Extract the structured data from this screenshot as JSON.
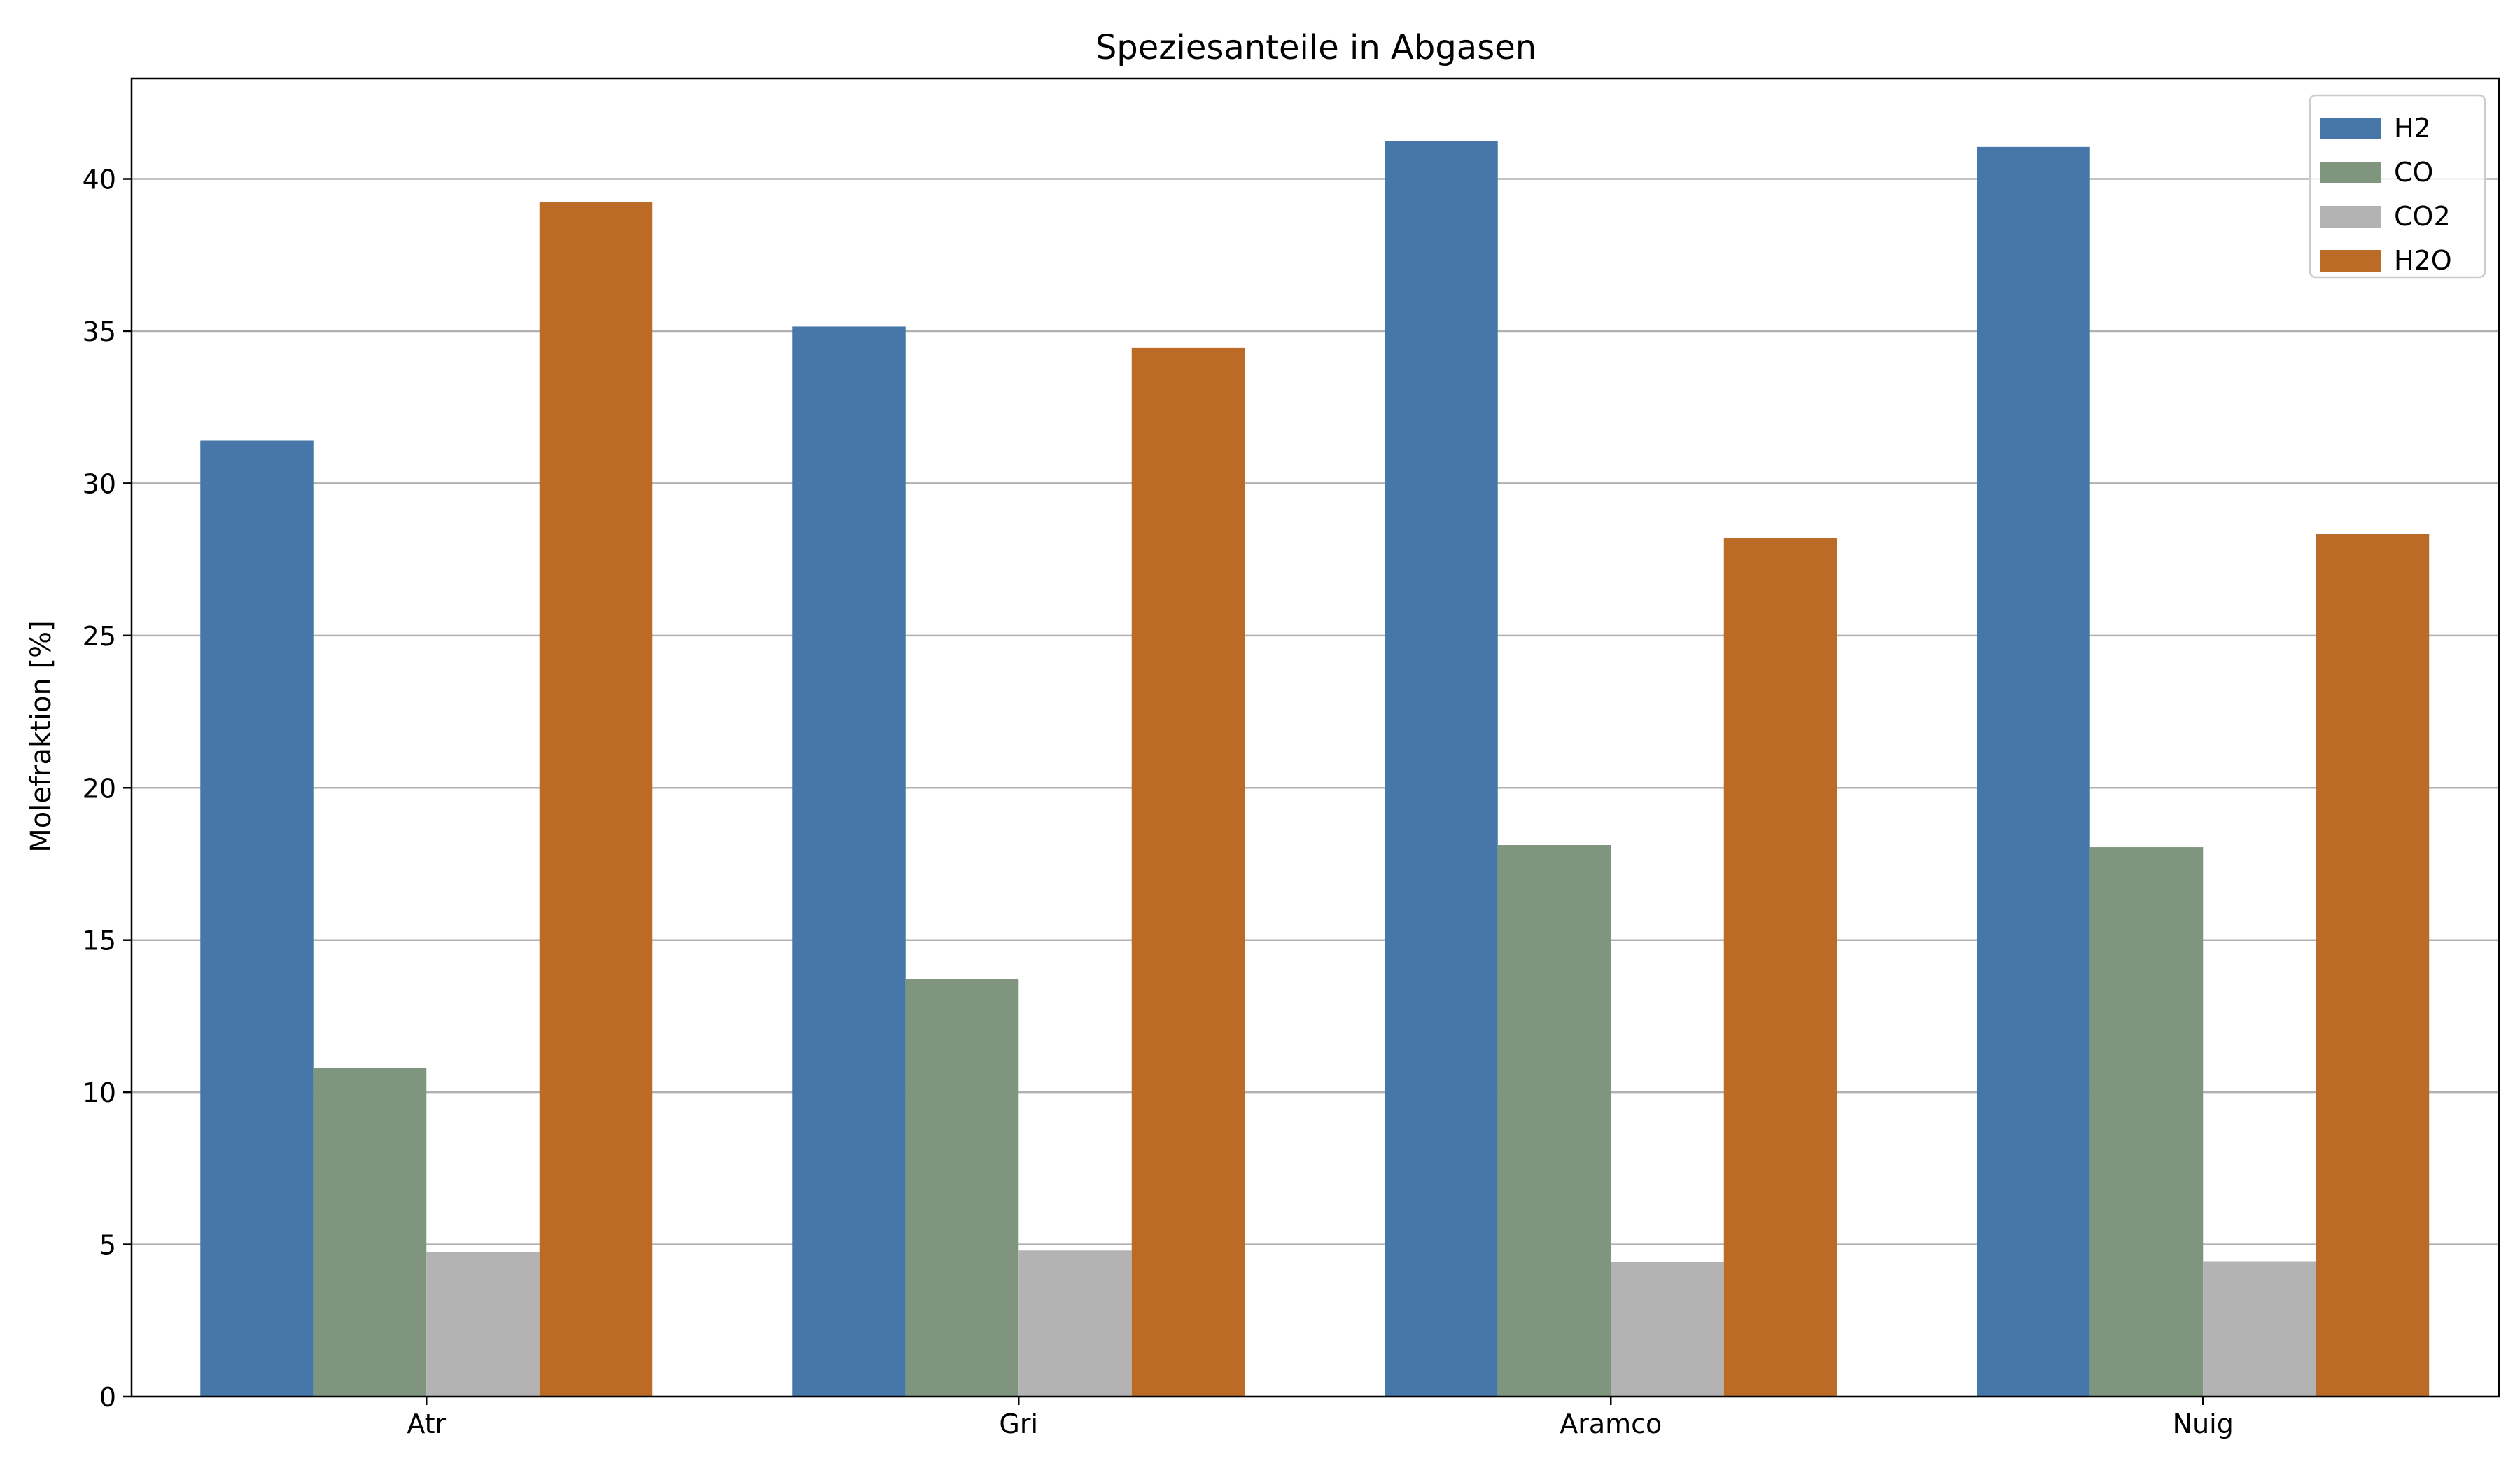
{
  "chart_data": {
    "type": "bar",
    "title": "Speziesanteile in Abgasen",
    "xlabel": "",
    "ylabel": "Molefraktion [%]",
    "categories": [
      "Atr",
      "Gri",
      "Aramco",
      "Nuig"
    ],
    "series": [
      {
        "name": "H2",
        "color": "#4777a8",
        "values": [
          31.4,
          35.15,
          41.25,
          41.05
        ]
      },
      {
        "name": "CO",
        "color": "#7f957e",
        "values": [
          10.8,
          13.72,
          18.12,
          18.05
        ]
      },
      {
        "name": "CO2",
        "color": "#b3b3b3",
        "values": [
          4.75,
          4.8,
          4.42,
          4.45
        ]
      },
      {
        "name": "H2O",
        "color": "#bb6b26",
        "values": [
          39.25,
          34.45,
          28.2,
          28.33
        ]
      }
    ],
    "ylim": [
      0,
      43.3
    ],
    "yticks": [
      0,
      5,
      10,
      15,
      20,
      25,
      30,
      35,
      40
    ],
    "grid": "y",
    "legend_position": "top-right"
  }
}
